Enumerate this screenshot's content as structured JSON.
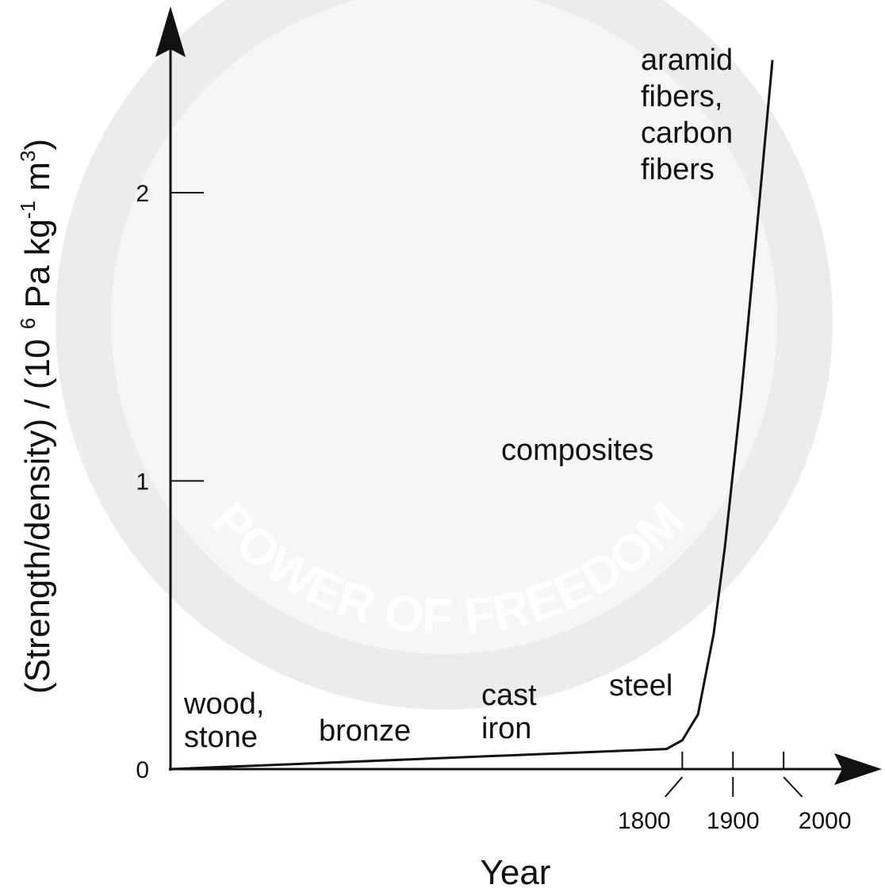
{
  "chart_data": {
    "type": "line",
    "watermark": "POWER OF FREEDOM",
    "xlabel": "Year",
    "ylabel": [
      "(Strength/density) / (10 ",
      "6",
      " Pa kg",
      "-1",
      " m",
      "3",
      ")"
    ],
    "x": [
      790,
      1769,
      1800,
      1831,
      1862,
      1884,
      1916,
      1947,
      1978
    ],
    "values": [
      0,
      0.07,
      0.1,
      0.19,
      0.47,
      0.77,
      1.29,
      1.87,
      2.46
    ],
    "color": "#111111",
    "xlim": [
      790,
      2175
    ],
    "ylim": [
      0,
      2.55
    ],
    "xticks": [
      1800,
      1900,
      2000
    ],
    "yticks": [
      0,
      1,
      2
    ],
    "annotations": [
      {
        "lines": [
          "wood,",
          "stone"
        ]
      },
      {
        "lines": [
          "bronze"
        ]
      },
      {
        "lines": [
          "cast",
          "iron"
        ]
      },
      {
        "lines": [
          "steel"
        ]
      },
      {
        "lines": [
          "composites"
        ]
      },
      {
        "lines": [
          "aramid",
          "fibers,",
          "carbon",
          "fibers"
        ]
      }
    ]
  }
}
